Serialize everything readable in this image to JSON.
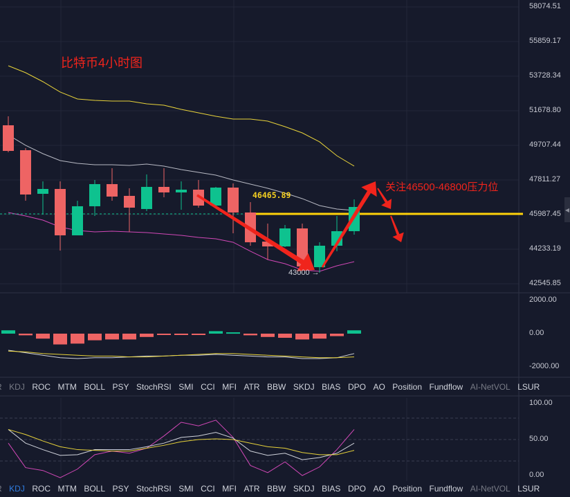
{
  "title": "比特币4小时图",
  "annotation": "关注46500-46800压力位",
  "price_tag": "46465.89",
  "low_tag": "43000 →",
  "price_axis": [
    "58074.51",
    "55859.17",
    "53728.34",
    "51678.80",
    "49707.44",
    "47811.27",
    "45987.45",
    "44233.19",
    "42545.85"
  ],
  "osc_axis": [
    "2000.00",
    "0.00",
    "-2000.00"
  ],
  "kdj_axis": [
    "100.00",
    "50.00",
    "0.00"
  ],
  "tabs": [
    {
      "label": "R",
      "state": "dim"
    },
    {
      "label": "KDJ",
      "state": "normal"
    },
    {
      "label": "ROC"
    },
    {
      "label": "MTM"
    },
    {
      "label": "BOLL"
    },
    {
      "label": "PSY"
    },
    {
      "label": "StochRSI"
    },
    {
      "label": "SMI"
    },
    {
      "label": "CCI"
    },
    {
      "label": "MFI"
    },
    {
      "label": "ATR"
    },
    {
      "label": "BBW"
    },
    {
      "label": "SKDJ"
    },
    {
      "label": "BIAS"
    },
    {
      "label": "DPO"
    },
    {
      "label": "AO"
    },
    {
      "label": "Position"
    },
    {
      "label": "Fundflow"
    },
    {
      "label": "AI-NetVOL",
      "state": "dim"
    },
    {
      "label": "LSUR"
    }
  ],
  "tabs_bottom_active": "KDJ",
  "colors": {
    "up": "#0ec28f",
    "down": "#ee6464",
    "upper": "#e8d33a",
    "mid": "#b8bac4",
    "lower": "#d148b7",
    "resistance": "#ffd20a",
    "arrow": "#f0241c"
  },
  "chart_data": {
    "type": "candlestick",
    "price_range": [
      42545.85,
      58074.51
    ],
    "resistance": 46465.89,
    "candles": [
      [
        51436,
        49999,
        51941,
        49922
      ],
      [
        50039,
        47554,
        50155,
        47205
      ],
      [
        47593,
        47865,
        48292,
        46428
      ],
      [
        47865,
        45264,
        48292,
        44410
      ],
      [
        45264,
        46895,
        47205,
        45264
      ],
      [
        46895,
        48137,
        48370,
        46351
      ],
      [
        48137,
        47438,
        49030,
        47205
      ],
      [
        47477,
        46817,
        47904,
        45458
      ],
      [
        46740,
        47981,
        48680,
        46623
      ],
      [
        47981,
        47671,
        49030,
        47399
      ],
      [
        47671,
        47826,
        48292,
        46700
      ],
      [
        47826,
        46933,
        48370,
        46817
      ],
      [
        46933,
        47942,
        47981,
        46817
      ],
      [
        47942,
        46545,
        48175,
        45380
      ],
      [
        46545,
        44876,
        47127,
        44682
      ],
      [
        44914,
        44642,
        45924,
        43905
      ],
      [
        44642,
        45652,
        45846,
        44604
      ],
      [
        45652,
        43517,
        45924,
        43400
      ],
      [
        43478,
        44682,
        44876,
        43167
      ],
      [
        44682,
        45497,
        46351,
        44371
      ],
      [
        45497,
        46855,
        47283,
        45303
      ]
    ],
    "boll_upper": [
      54775,
      54386,
      53882,
      53300,
      52911,
      52834,
      52795,
      52795,
      52640,
      52562,
      52329,
      52135,
      51941,
      51786,
      51786,
      51669,
      51359,
      51009,
      50505,
      49728,
      49146
    ],
    "boll_mid": [
      50893,
      50311,
      49845,
      49457,
      49301,
      49223,
      49223,
      49185,
      49262,
      49146,
      48952,
      48797,
      48641,
      48370,
      48137,
      47904,
      47632,
      47322,
      46933,
      46739,
      46662
    ],
    "boll_lower": [
      46545,
      46351,
      46118,
      45730,
      45536,
      45458,
      45497,
      45458,
      45419,
      45341,
      45264,
      45147,
      45070,
      44876,
      44371,
      43905,
      43672,
      43323,
      43245,
      43555,
      43788
    ],
    "osc_hist": [
      200,
      -100,
      -300,
      -650,
      -600,
      -400,
      -350,
      -350,
      -200,
      -50,
      -30,
      -30,
      150,
      80,
      -100,
      -200,
      -250,
      -350,
      -300,
      -150,
      200
    ],
    "osc_line1": [
      -1000,
      -1150,
      -1300,
      -1450,
      -1500,
      -1450,
      -1450,
      -1400,
      -1350,
      -1350,
      -1300,
      -1300,
      -1250,
      -1300,
      -1350,
      -1400,
      -1400,
      -1500,
      -1500,
      -1450,
      -1200
    ],
    "osc_line2": [
      -1050,
      -1100,
      -1200,
      -1250,
      -1300,
      -1350,
      -1350,
      -1400,
      -1400,
      -1350,
      -1300,
      -1250,
      -1200,
      -1200,
      -1250,
      -1300,
      -1350,
      -1400,
      -1450,
      -1450,
      -1400
    ],
    "kdj_k": [
      64,
      45,
      36,
      28,
      29,
      36,
      36,
      36,
      40,
      45,
      53,
      55,
      60,
      52,
      34,
      28,
      31,
      22,
      25,
      31,
      45
    ],
    "kdj_d": [
      64,
      57,
      48,
      40,
      36,
      35,
      34,
      34,
      38,
      42,
      47,
      50,
      51,
      50,
      45,
      40,
      38,
      32,
      29,
      29,
      35
    ],
    "kdj_j": [
      45,
      11,
      7,
      -3,
      9,
      29,
      34,
      31,
      38,
      55,
      74,
      69,
      77,
      53,
      14,
      4,
      19,
      0,
      12,
      36,
      64
    ]
  }
}
